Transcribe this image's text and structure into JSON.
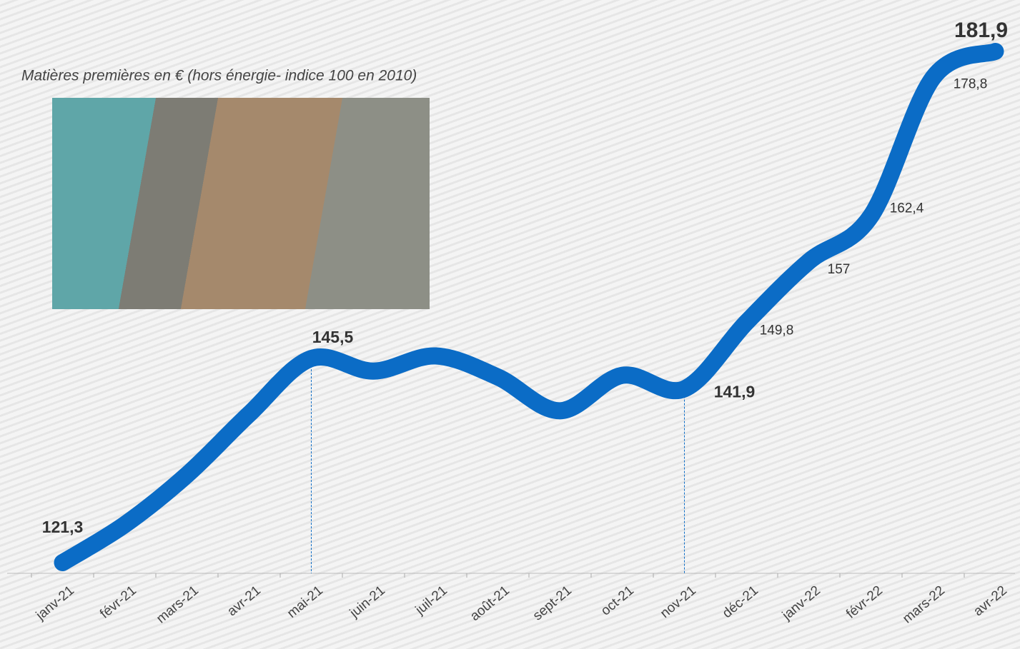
{
  "chart_data": {
    "type": "line",
    "title": "Matières premières en € (hors énergie- indice 100 en 2010)",
    "categories": [
      "janv-21",
      "févr-21",
      "mars-21",
      "avr-21",
      "mai-21",
      "juin-21",
      "juil-21",
      "août-21",
      "sept-21",
      "oct-21",
      "nov-21",
      "déc-21",
      "janv-22",
      "févr-22",
      "mars-22",
      "avr-22"
    ],
    "series": [
      {
        "name": null,
        "color": "#0b6cc6",
        "values": [
          121.3,
          125.8,
          131.7,
          138.9,
          145.5,
          144.0,
          145.8,
          143.3,
          139.3,
          143.5,
          141.9,
          149.8,
          157,
          162.4,
          178.8,
          181.9
        ],
        "value_labels": [
          "121,3",
          null,
          null,
          null,
          "145,5",
          null,
          null,
          null,
          null,
          null,
          "141,9",
          "149,8",
          "157",
          "162,4",
          "178,8",
          "181,9"
        ],
        "bold_labels": [
          true,
          false,
          false,
          false,
          true,
          false,
          false,
          false,
          false,
          false,
          true,
          false,
          false,
          false,
          false,
          true
        ],
        "drop_lines": [
          false,
          false,
          false,
          false,
          true,
          false,
          false,
          false,
          false,
          false,
          true,
          false,
          false,
          false,
          false,
          false
        ]
      }
    ]
  }
}
